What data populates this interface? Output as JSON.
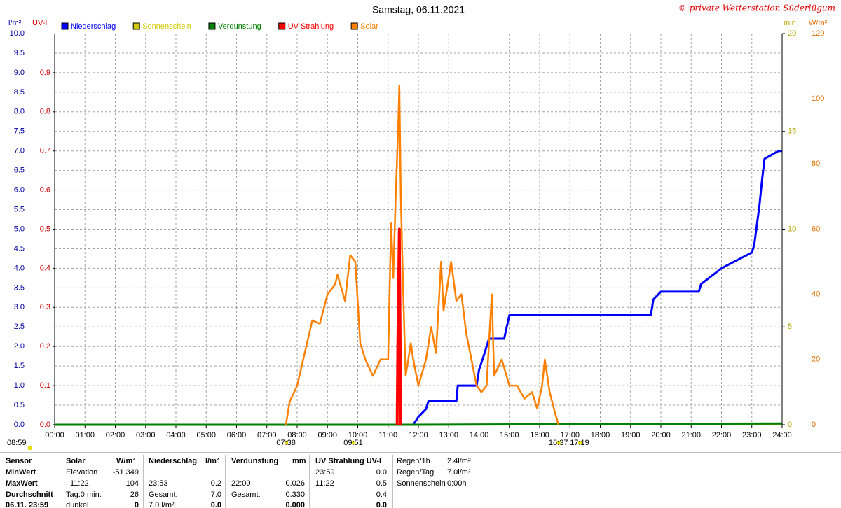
{
  "chart_data": {
    "type": "line",
    "title": "Samstag, 06.11.2021",
    "credit": "© private Wetterstation Süderlügum",
    "y_label": "l/m²",
    "y2_label": "UV-I",
    "y3_label": "min",
    "y4_label": "W/m²",
    "grid": true,
    "xlim": [
      0,
      24
    ],
    "xticks": [
      {
        "value": 0,
        "label": "00:00"
      },
      {
        "value": 1,
        "label": "01:00"
      },
      {
        "value": 2,
        "label": "02:00"
      },
      {
        "value": 3,
        "label": "03:00"
      },
      {
        "value": 4,
        "label": "04:00"
      },
      {
        "value": 5,
        "label": "05:00"
      },
      {
        "value": 6,
        "label": "06:00"
      },
      {
        "value": 7,
        "label": "07:00"
      },
      {
        "value": 8,
        "label": "08:00"
      },
      {
        "value": 9,
        "label": "09:00"
      },
      {
        "value": 10,
        "label": "10:00"
      },
      {
        "value": 11,
        "label": "11:00"
      },
      {
        "value": 12,
        "label": "12:00"
      },
      {
        "value": 13,
        "label": "13:00"
      },
      {
        "value": 14,
        "label": "14:00"
      },
      {
        "value": 15,
        "label": "15:00"
      },
      {
        "value": 16,
        "label": "16:00"
      },
      {
        "value": 17,
        "label": "17:00"
      },
      {
        "value": 18,
        "label": "18:00"
      },
      {
        "value": 19,
        "label": "19:00"
      },
      {
        "value": 20,
        "label": "20:00"
      },
      {
        "value": 21,
        "label": "21:00"
      },
      {
        "value": 22,
        "label": "22:00"
      },
      {
        "value": 23,
        "label": "23:00"
      },
      {
        "value": 24,
        "label": "24:00"
      }
    ],
    "ylim": [
      0,
      10
    ],
    "yticks": [
      {
        "value": 0,
        "label": "0.0"
      },
      {
        "value": 0.5,
        "label": "0.5"
      },
      {
        "value": 1,
        "label": "1.0"
      },
      {
        "value": 1.5,
        "label": "1.5"
      },
      {
        "value": 2,
        "label": "2.0"
      },
      {
        "value": 2.5,
        "label": "2.5"
      },
      {
        "value": 3,
        "label": "3.0"
      },
      {
        "value": 3.5,
        "label": "3.5"
      },
      {
        "value": 4,
        "label": "4.0"
      },
      {
        "value": 4.5,
        "label": "4.5"
      },
      {
        "value": 5,
        "label": "5.0"
      },
      {
        "value": 5.5,
        "label": "5.5"
      },
      {
        "value": 6,
        "label": "6.0"
      },
      {
        "value": 6.5,
        "label": "6.5"
      },
      {
        "value": 7,
        "label": "7.0"
      },
      {
        "value": 7.5,
        "label": "7.5"
      },
      {
        "value": 8,
        "label": "8.0"
      },
      {
        "value": 8.5,
        "label": "8.5"
      },
      {
        "value": 9,
        "label": "9.0"
      },
      {
        "value": 9.5,
        "label": "9.5"
      },
      {
        "value": 10,
        "label": "10.0"
      }
    ],
    "y2lim": [
      0,
      1
    ],
    "y2ticks": [
      {
        "value": 0,
        "label": "0.0"
      },
      {
        "value": 0.1,
        "label": "0.1"
      },
      {
        "value": 0.2,
        "label": "0.2"
      },
      {
        "value": 0.3,
        "label": "0.3"
      },
      {
        "value": 0.4,
        "label": "0.4"
      },
      {
        "value": 0.5,
        "label": "0.5"
      },
      {
        "value": 0.6,
        "label": "0.6"
      },
      {
        "value": 0.7,
        "label": "0.7"
      },
      {
        "value": 0.8,
        "label": "0.8"
      },
      {
        "value": 0.9,
        "label": "0.9"
      }
    ],
    "y3lim": [
      0,
      20
    ],
    "y3ticks": [
      0,
      5,
      10,
      15,
      20
    ],
    "y4lim": [
      0,
      120
    ],
    "y4ticks": [
      0,
      20,
      40,
      60,
      80,
      100,
      120
    ],
    "series": [
      {
        "name": "Niederschlag",
        "color": "#0000ff",
        "axis": "y",
        "x": [
          0,
          11.83,
          12.0,
          12.25,
          12.33,
          13.25,
          13.3,
          13.92,
          14.0,
          14.17,
          14.33,
          14.83,
          15.0,
          19.67,
          19.75,
          20.0,
          21.25,
          21.33,
          21.67,
          22.0,
          22.5,
          23.0,
          23.08,
          23.25,
          23.33,
          23.42,
          23.88,
          24.0
        ],
        "values": [
          0,
          0,
          0.2,
          0.4,
          0.6,
          0.6,
          1.0,
          1.0,
          1.4,
          1.8,
          2.2,
          2.2,
          2.8,
          2.8,
          3.2,
          3.4,
          3.4,
          3.6,
          3.8,
          4.0,
          4.2,
          4.4,
          4.6,
          5.6,
          6.2,
          6.8,
          7.0,
          7.0
        ]
      },
      {
        "name": "Sonnenschein",
        "color": "#d4c800",
        "axis": "y3",
        "x": [
          0,
          24
        ],
        "values": [
          0,
          0
        ]
      },
      {
        "name": "Verdunstung",
        "color": "#008000",
        "axis": "y",
        "x": [
          0,
          11.83,
          22.0,
          24.0
        ],
        "values": [
          0,
          0,
          0.026,
          0.03
        ]
      },
      {
        "name": "UV Strahlung",
        "color": "#ff0000",
        "axis": "y2",
        "x": [
          11.3,
          11.32,
          11.37,
          11.4,
          11.42
        ],
        "values": [
          0,
          0.2,
          0.5,
          0.2,
          0
        ]
      },
      {
        "name": "Solar",
        "color": "#ff8000",
        "axis": "y4",
        "x": [
          7.63,
          7.75,
          8.0,
          8.25,
          8.5,
          8.75,
          9.0,
          9.25,
          9.33,
          9.58,
          9.75,
          9.92,
          10.08,
          10.25,
          10.5,
          10.75,
          11.0,
          11.1,
          11.17,
          11.25,
          11.33,
          11.37,
          11.42,
          11.5,
          11.58,
          11.75,
          11.83,
          12.0,
          12.25,
          12.42,
          12.58,
          12.75,
          12.83,
          13.08,
          13.25,
          13.42,
          13.58,
          13.75,
          13.92,
          14.08,
          14.25,
          14.42,
          14.5,
          14.75,
          15.0,
          15.25,
          15.5,
          15.75,
          15.92,
          16.08,
          16.17,
          16.33,
          16.5,
          16.62
        ],
        "values": [
          0,
          7,
          12,
          22,
          32,
          31,
          40,
          43,
          46,
          38,
          52,
          50,
          25,
          20,
          15,
          20,
          20,
          62,
          45,
          70,
          90,
          104,
          70,
          40,
          15,
          25,
          20,
          12,
          20,
          30,
          22,
          50,
          35,
          50,
          38,
          40,
          28,
          20,
          12,
          10,
          12,
          40,
          15,
          20,
          12,
          12,
          8,
          10,
          5,
          12,
          20,
          10,
          4,
          0
        ]
      }
    ],
    "annotations": [
      {
        "text": "08:59"
      },
      {
        "text": "07:38",
        "x": 7.633
      },
      {
        "text": "09:51",
        "x": 9.85
      },
      {
        "text": "16:37",
        "x": 16.617
      },
      {
        "text": "17:19",
        "x": 17.317
      }
    ]
  },
  "summary": {
    "row_labels": [
      "Sensor",
      "MinWert",
      "MaxWert",
      "Durchschnitt",
      "06.11. 23:59"
    ],
    "groups": [
      {
        "title": "Solar",
        "unit": "W/m²",
        "rows": [
          {
            "label": "Elevation",
            "value": "-51.349"
          },
          {
            "label": "11:22",
            "value": "104"
          },
          {
            "label": "Tag:0 min.",
            "value": "26"
          },
          {
            "label": "dunkel",
            "value": "0"
          }
        ]
      },
      {
        "title": "Niederschlag",
        "unit": "l/m²",
        "rows": [
          null,
          {
            "label": "23:53",
            "value": "0.2"
          },
          {
            "label": "Gesamt:",
            "value": "7.0"
          },
          {
            "label": "7.0 l/m²",
            "value": "0.0"
          }
        ]
      },
      {
        "title": "Verdunstung",
        "unit": "mm",
        "rows": [
          null,
          {
            "label": "22:00",
            "value": "0.026"
          },
          {
            "label": "Gesamt:",
            "value": "0.330"
          },
          {
            "value": "0.000"
          }
        ]
      },
      {
        "title": "UV Strahlung UV-I",
        "rows": [
          {
            "label": "23:59",
            "value": "0.0"
          },
          {
            "label": "11:22",
            "value": "0.5"
          },
          {
            "value": "0.4"
          },
          {
            "value": "0.0"
          }
        ]
      }
    ],
    "extra": [
      {
        "label": "Regen/1h",
        "value": "2.4l/m²"
      },
      {
        "label": "Regen/Tag",
        "value": "7.0l/m²"
      },
      {
        "label": "Sonnenschein",
        "value": "0:00h"
      }
    ]
  }
}
